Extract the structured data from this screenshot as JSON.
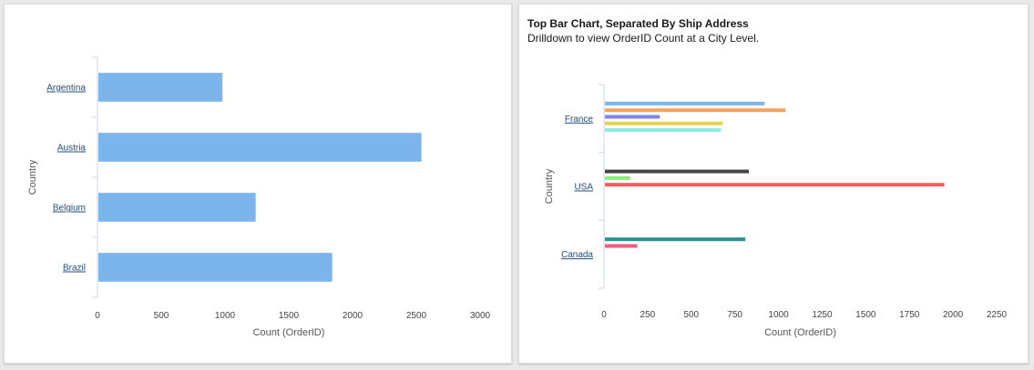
{
  "chart_data": [
    {
      "type": "bar",
      "orientation": "horizontal",
      "title": "",
      "xlabel": "Count (OrderID)",
      "ylabel": "Country",
      "xlim": [
        0,
        3000
      ],
      "xticks": [
        "0",
        "500",
        "1000",
        "1500",
        "2000",
        "2500",
        "3000"
      ],
      "categories": [
        "Argentina",
        "Austria",
        "Belgium",
        "Brazil"
      ],
      "values": [
        980,
        2540,
        1240,
        1840
      ],
      "color": "#7cb5ec",
      "grid": false,
      "legend": "none"
    },
    {
      "type": "bar",
      "orientation": "horizontal",
      "title": "Top Bar Chart, Separated By Ship Address",
      "subtitle": "Drilldown to view OrderID Count at a City Level.",
      "xlabel": "Count (OrderID)",
      "ylabel": "Country",
      "xlim": [
        0,
        2250
      ],
      "xticks": [
        "0",
        "250",
        "500",
        "750",
        "1000",
        "1250",
        "1500",
        "1750",
        "2000",
        "2250"
      ],
      "categories": [
        "France",
        "USA",
        "Canada"
      ],
      "groups": [
        {
          "category": "France",
          "bars": [
            {
              "value": 920,
              "color": "#7cb5ec"
            },
            {
              "value": 1040,
              "color": "#f7a35c"
            },
            {
              "value": 320,
              "color": "#8085e9"
            },
            {
              "value": 680,
              "color": "#e4d354"
            },
            {
              "value": 670,
              "color": "#91e8e1"
            }
          ]
        },
        {
          "category": "USA",
          "bars": [
            {
              "value": 830,
              "color": "#434348"
            },
            {
              "value": 150,
              "color": "#90ed7d"
            },
            {
              "value": 1950,
              "color": "#f45b5b"
            }
          ]
        },
        {
          "category": "Canada",
          "bars": [
            {
              "value": 810,
              "color": "#2b908f"
            },
            {
              "value": 190,
              "color": "#f15c80"
            }
          ]
        }
      ],
      "grid": false,
      "legend": "none"
    }
  ]
}
